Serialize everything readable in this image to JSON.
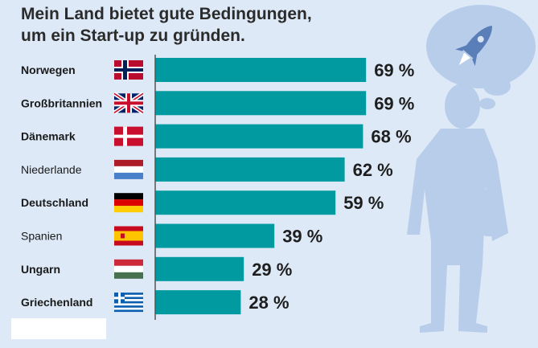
{
  "title_line1": "Mein Land bietet gute Bedingungen,",
  "title_line2": "um ein Start-up zu gründen.",
  "colors": {
    "bar": "#009aa0",
    "background": "#dde9f7",
    "silhouette": "#b7cdea"
  },
  "chart_data": {
    "type": "bar",
    "orientation": "horizontal",
    "title": "Mein Land bietet gute Bedingungen, um ein Start-up zu gründen.",
    "unit": "%",
    "xlim": [
      0,
      100
    ],
    "categories": [
      "Norwegen",
      "Großbritannien",
      "Dänemark",
      "Niederlande",
      "Deutschland",
      "Spanien",
      "Ungarn",
      "Griechenland"
    ],
    "values": [
      69,
      69,
      68,
      62,
      59,
      39,
      29,
      28
    ],
    "value_labels": [
      "69 %",
      "69 %",
      "68 %",
      "62 %",
      "59 %",
      "39 %",
      "29 %",
      "28 %"
    ],
    "bold_labels": [
      true,
      true,
      true,
      false,
      true,
      false,
      true,
      true
    ],
    "flags": [
      "norway-flag-icon",
      "uk-flag-icon",
      "denmark-flag-icon",
      "netherlands-flag-icon",
      "germany-flag-icon",
      "spain-flag-icon",
      "hungary-flag-icon",
      "greece-flag-icon"
    ]
  }
}
